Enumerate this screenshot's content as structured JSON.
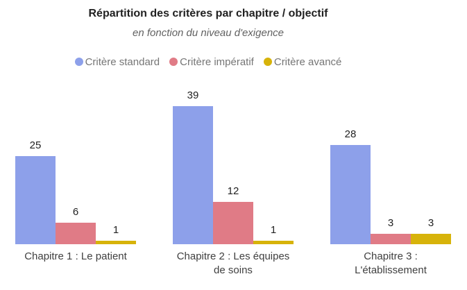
{
  "chart": {
    "title": "Répartition des critères par chapitre / objectif",
    "subtitle": "en fonction du niveau d'exigence"
  },
  "chart_data": {
    "type": "bar",
    "title": "Répartition des critères par chapitre / objectif",
    "subtitle": "en fonction du niveau d'exigence",
    "categories": [
      "Chapitre 1 : Le patient",
      "Chapitre 2 : Les équipes\nde soins",
      "Chapitre 3 :\nL'établissement"
    ],
    "series": [
      {
        "name": "Critère standard",
        "color": "#8da0ea",
        "values": [
          25,
          39,
          28
        ]
      },
      {
        "name": "Critère impératif",
        "color": "#e07b86",
        "values": [
          6,
          12,
          3
        ]
      },
      {
        "name": "Critère avancé",
        "color": "#d7b30a",
        "values": [
          1,
          1,
          3
        ]
      }
    ],
    "value_labels": true,
    "legend_position": "top",
    "grid": false,
    "axes_visible": false,
    "ylim": [
      0,
      39
    ]
  }
}
